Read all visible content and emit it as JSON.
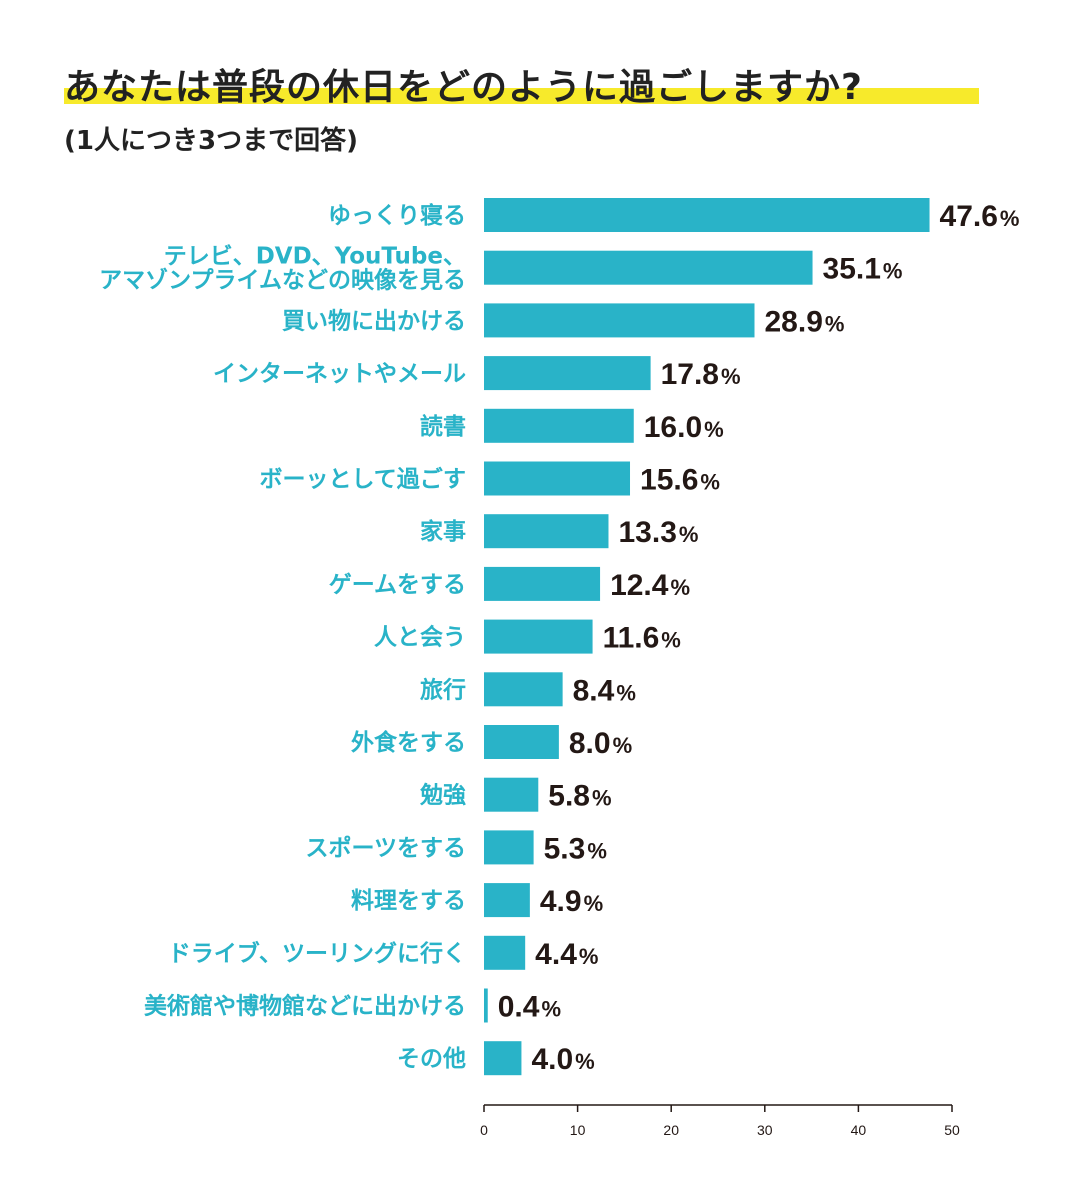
{
  "title": "あなたは普段の休日をどのように過ごしますか?",
  "subtitle": "(1人につき3つまで回答)",
  "colors": {
    "bar": "#29b3c8",
    "label": "#29b3c8",
    "value": "#231815",
    "highlight": "#f7ea2b",
    "axis": "#231815"
  },
  "chart_data": {
    "type": "bar",
    "orientation": "horizontal",
    "categories": [
      [
        "ゆっくり寝る"
      ],
      [
        "テレビ、DVD、YouTube、",
        "アマゾンプライムなどの映像を見る"
      ],
      [
        "買い物に出かける"
      ],
      [
        "インターネットやメール"
      ],
      [
        "読書"
      ],
      [
        "ボーッとして過ごす"
      ],
      [
        "家事"
      ],
      [
        "ゲームをする"
      ],
      [
        "人と会う"
      ],
      [
        "旅行"
      ],
      [
        "外食をする"
      ],
      [
        "勉強"
      ],
      [
        "スポーツをする"
      ],
      [
        "料理をする"
      ],
      [
        "ドライブ、ツーリングに行く"
      ],
      [
        "美術館や博物館などに出かける"
      ],
      [
        "その他"
      ]
    ],
    "values": [
      47.6,
      35.1,
      28.9,
      17.8,
      16.0,
      15.6,
      13.3,
      12.4,
      11.6,
      8.4,
      8.0,
      5.8,
      5.3,
      4.9,
      4.4,
      0.4,
      4.0
    ],
    "value_labels": [
      "47.6",
      "35.1",
      "28.9",
      "17.8",
      "16.0",
      "15.6",
      "13.3",
      "12.4",
      "11.6",
      "8.4",
      "8.0",
      "5.8",
      "5.3",
      "4.9",
      "4.4",
      "0.4",
      "4.0"
    ],
    "unit": "%",
    "xlim": [
      0,
      50
    ],
    "xticks": [
      0,
      10,
      20,
      30,
      40,
      50
    ],
    "grid": false
  }
}
